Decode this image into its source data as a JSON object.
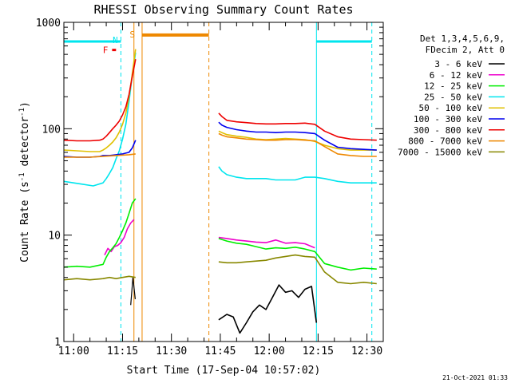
{
  "chart_data": {
    "type": "line",
    "title": "RHESSI Observing Summary Count Rates",
    "xlabel": "Start Time (17-Sep-04 10:57:02)",
    "ylabel_main": "Count Rate (s",
    "ylabel_sup1": "-1",
    "ylabel_mid": " detector",
    "ylabel_sup2": "-1",
    "ylabel_end": ")",
    "yscale": "log",
    "xlim_minutes": [
      0,
      98
    ],
    "ylim": [
      1,
      1000
    ],
    "x_tick_minutes": [
      3,
      18,
      33,
      48,
      63,
      78,
      93
    ],
    "x_tick_labels": [
      "11:00",
      "11:15",
      "11:30",
      "11:45",
      "12:00",
      "12:15",
      "12:30"
    ],
    "y_ticks": [
      1,
      10,
      100,
      1000
    ],
    "y_tick_labels": [
      "1",
      "10",
      "100",
      "1000"
    ],
    "legend_header": [
      "Det 1,3,4,5,6,9,",
      "FDecim 2, Att 0"
    ],
    "legend_placement": "right",
    "flags": {
      "F_label": "F",
      "F_color": "#ee0000",
      "F_span": [
        14.8,
        16.0
      ],
      "F_y": 550,
      "N_label": "N",
      "N_color": "#00e5ee",
      "N_x": 15.8,
      "S_label": "S",
      "S_color": "#ee8800",
      "S_x": 21.0,
      "sunlight_color": "#00e5ee",
      "sunlight_spans": [
        [
          0,
          17.5
        ],
        [
          77.5,
          94.5
        ]
      ],
      "sunlight_y": 660,
      "saa_color": "#ee8800",
      "saa_span": [
        24.0,
        44.5
      ],
      "saa_y": 760
    },
    "vertical_lines": [
      {
        "x": 17.5,
        "color": "#00e5ee",
        "dashed": true
      },
      {
        "x": 77.5,
        "color": "#00e5ee",
        "dashed": false
      },
      {
        "x": 94.5,
        "color": "#00e5ee",
        "dashed": true
      },
      {
        "x": 21.5,
        "color": "#ee8800",
        "dashed": false
      },
      {
        "x": 24.0,
        "color": "#ee8800",
        "dashed": false
      },
      {
        "x": 44.5,
        "color": "#ee8800",
        "dashed": true
      }
    ],
    "gap_minutes": [
      22.0,
      47.5
    ],
    "series": [
      {
        "name": "3 - 6 keV",
        "color": "#000000",
        "x": [
          47.5,
          50,
          52,
          54,
          56,
          58,
          60,
          62,
          64,
          66,
          68,
          70,
          72,
          74,
          76,
          77.5
        ],
        "y": [
          1.6,
          1.8,
          1.7,
          1.2,
          1.5,
          1.9,
          2.2,
          2.0,
          2.6,
          3.4,
          2.9,
          3.0,
          2.6,
          3.1,
          3.3,
          1.5
        ],
        "extra": [
          {
            "x": [
              20.5,
              21.2,
              21.9
            ],
            "y": [
              2.2,
              4.0,
              2.5
            ]
          }
        ]
      },
      {
        "name": "6 - 12 keV",
        "color": "#ee00cc",
        "x": [
          12.5,
          13.5,
          14.5,
          15.5,
          16.5,
          17.5,
          18.5,
          19.5,
          20.5,
          21.5,
          47.5,
          50,
          53,
          56,
          59,
          62,
          65,
          68,
          71,
          74,
          77
        ],
        "y": [
          6.5,
          7.5,
          7.0,
          7.8,
          8.0,
          8.5,
          9.5,
          11.5,
          13.0,
          14.0,
          9.5,
          9.3,
          9.0,
          8.8,
          8.6,
          8.5,
          9.0,
          8.4,
          8.5,
          8.3,
          7.6
        ]
      },
      {
        "name": "12 - 25 keV",
        "color": "#00ee00",
        "x": [
          0,
          4,
          8,
          12,
          13,
          14,
          15,
          16,
          17,
          18,
          19,
          20,
          21,
          22,
          47.5,
          50,
          53,
          56,
          59,
          62,
          65,
          68,
          71,
          74,
          77,
          80,
          84,
          88,
          92,
          96
        ],
        "y": [
          5.0,
          5.1,
          5.0,
          5.3,
          6.2,
          7.0,
          7.6,
          8.3,
          9.5,
          11.0,
          13.0,
          16.0,
          20.0,
          22.0,
          9.3,
          8.8,
          8.4,
          8.2,
          7.8,
          7.4,
          7.6,
          7.5,
          7.7,
          7.4,
          7.0,
          5.4,
          5.0,
          4.7,
          4.9,
          4.8
        ]
      },
      {
        "name": "25 - 50 keV",
        "color": "#00e5ee",
        "x": [
          0,
          3,
          6,
          9,
          12,
          13,
          14,
          15,
          16,
          17,
          18,
          19,
          20,
          21,
          22,
          47.5,
          48.5,
          50,
          53,
          56,
          59,
          62,
          65,
          68,
          71,
          74,
          77,
          80,
          84,
          88,
          92,
          96
        ],
        "y": [
          32,
          31,
          30,
          29,
          31,
          34,
          38,
          43,
          52,
          62,
          80,
          110,
          180,
          320,
          520,
          44,
          40,
          37,
          35,
          34,
          34,
          34,
          33,
          33,
          33,
          35,
          35,
          34,
          32,
          31,
          31,
          31
        ]
      },
      {
        "name": "50 - 100 keV",
        "color": "#e0c000",
        "x": [
          0,
          4,
          8,
          11,
          12,
          13,
          14,
          15,
          16,
          17,
          18,
          19,
          20,
          21,
          22,
          47.5,
          48.5,
          50,
          53,
          56,
          59,
          62,
          65,
          68,
          71,
          74,
          77,
          80,
          84,
          88,
          92,
          96
        ],
        "y": [
          63,
          62,
          61,
          61,
          63,
          66,
          70,
          75,
          82,
          93,
          110,
          140,
          200,
          330,
          560,
          95,
          92,
          88,
          85,
          83,
          80,
          79,
          80,
          81,
          80,
          79,
          76,
          70,
          65,
          63,
          63,
          63
        ]
      },
      {
        "name": "100 - 300 keV",
        "color": "#0000ee",
        "x": [
          0,
          4,
          8,
          11,
          12,
          14,
          16,
          18,
          20,
          21,
          22,
          47.5,
          48.5,
          50,
          53,
          56,
          59,
          62,
          65,
          68,
          71,
          74,
          77,
          80,
          84,
          88,
          92,
          96
        ],
        "y": [
          55,
          54,
          54,
          55,
          56,
          56,
          57,
          58,
          60,
          66,
          78,
          115,
          108,
          103,
          98,
          95,
          93,
          93,
          92,
          93,
          93,
          92,
          90,
          78,
          67,
          65,
          64,
          63
        ]
      },
      {
        "name": "300 - 800 keV",
        "color": "#ee0000",
        "x": [
          0,
          4,
          8,
          11,
          12,
          13,
          14,
          15,
          16,
          17,
          18,
          19,
          20,
          21,
          22,
          47.5,
          48.5,
          50,
          53,
          56,
          59,
          62,
          65,
          68,
          71,
          74,
          77,
          80,
          84,
          88,
          92,
          96
        ],
        "y": [
          78,
          77,
          77,
          78,
          80,
          85,
          92,
          100,
          108,
          118,
          135,
          160,
          210,
          310,
          450,
          140,
          130,
          120,
          116,
          114,
          112,
          111,
          111,
          112,
          112,
          113,
          110,
          95,
          84,
          80,
          79,
          78
        ]
      },
      {
        "name": "800 - 7000 keV",
        "color": "#ee8800",
        "x": [
          0,
          4,
          8,
          12,
          16,
          20,
          22,
          47.5,
          48.5,
          50,
          53,
          56,
          59,
          62,
          65,
          68,
          71,
          74,
          77,
          80,
          84,
          88,
          92,
          96
        ],
        "y": [
          54,
          54,
          54,
          55,
          56,
          57,
          58,
          90,
          87,
          84,
          82,
          80,
          79,
          78,
          78,
          79,
          79,
          78,
          77,
          68,
          58,
          56,
          55,
          55
        ]
      },
      {
        "name": "7000 - 15000 keV",
        "color": "#888800",
        "x": [
          0,
          4,
          8,
          12,
          14,
          16,
          18,
          20,
          22,
          47.5,
          50,
          53,
          56,
          59,
          62,
          65,
          68,
          71,
          74,
          77,
          80,
          84,
          88,
          92,
          96
        ],
        "y": [
          3.8,
          3.9,
          3.8,
          3.9,
          4.0,
          3.9,
          4.0,
          4.1,
          4.0,
          5.6,
          5.5,
          5.5,
          5.6,
          5.7,
          5.8,
          6.1,
          6.3,
          6.5,
          6.3,
          6.2,
          4.5,
          3.6,
          3.5,
          3.6,
          3.5
        ]
      }
    ]
  },
  "footer": {
    "timestamp": "21-Oct-2021 01:33"
  }
}
